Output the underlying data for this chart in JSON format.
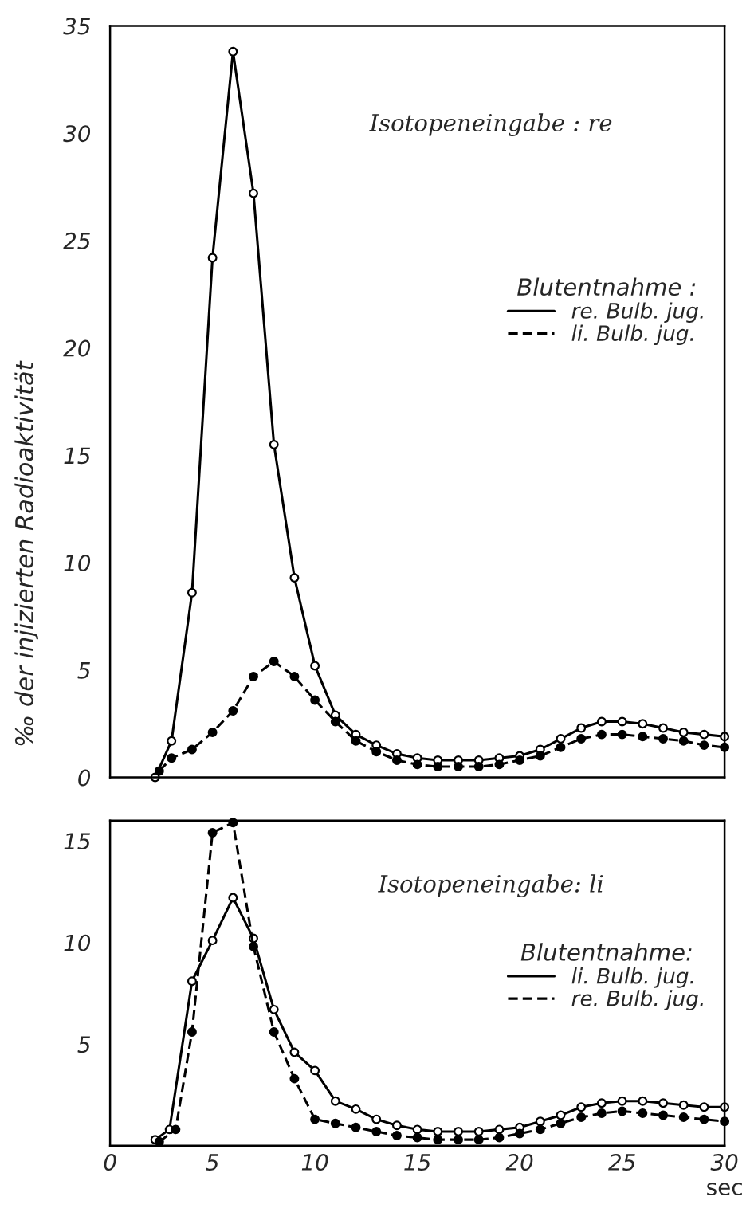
{
  "chart_data": [
    {
      "type": "line",
      "annotations": [
        "Isotopeneingabe : re"
      ],
      "ylabel": "‰ der injizierten Radioaktivität",
      "legend_title": "Blutentnahme :",
      "legend": "right",
      "marker": "circle",
      "grid": false,
      "tick_labels": "y",
      "xlim": [
        0,
        30
      ],
      "xticks": [
        0,
        5,
        10,
        15,
        20,
        25,
        30
      ],
      "ylim": [
        0,
        35
      ],
      "yticks": [
        0,
        5,
        10,
        15,
        20,
        25,
        30,
        35
      ],
      "series": [
        {
          "name": "re. Bulb. jug.",
          "color": "#000000",
          "line_style": "solid",
          "x": [
            2.2,
            3,
            4,
            5,
            6,
            7,
            8,
            9,
            10,
            11,
            12,
            13,
            14,
            15,
            16,
            17,
            18,
            19,
            20,
            21,
            22,
            23,
            24,
            25,
            26,
            27,
            28,
            29,
            30
          ],
          "values": [
            0,
            1.7,
            8.6,
            24.2,
            33.8,
            27.2,
            15.5,
            9.3,
            5.2,
            2.9,
            2.0,
            1.5,
            1.1,
            0.9,
            0.8,
            0.8,
            0.8,
            0.9,
            1.0,
            1.3,
            1.8,
            2.3,
            2.6,
            2.6,
            2.5,
            2.3,
            2.1,
            2.0,
            1.9
          ]
        },
        {
          "name": "li. Bulb. jug.",
          "color": "#000000",
          "line_style": "dashed",
          "x": [
            2.4,
            3,
            4,
            5,
            6,
            7,
            8,
            9,
            10,
            11,
            12,
            13,
            14,
            15,
            16,
            17,
            18,
            19,
            20,
            21,
            22,
            23,
            24,
            25,
            26,
            27,
            28,
            29,
            30
          ],
          "values": [
            0.3,
            0.9,
            1.3,
            2.1,
            3.1,
            4.7,
            5.4,
            4.7,
            3.6,
            2.6,
            1.7,
            1.2,
            0.8,
            0.6,
            0.5,
            0.5,
            0.5,
            0.6,
            0.8,
            1.0,
            1.4,
            1.8,
            2.0,
            2.0,
            1.9,
            1.8,
            1.7,
            1.5,
            1.4
          ]
        }
      ]
    },
    {
      "type": "line",
      "annotations": [
        "Isotopeneingabe: li"
      ],
      "xlabel": "sec",
      "legend_title": "Blutentnahme:",
      "legend": "right",
      "marker": "circle",
      "grid": false,
      "xlim": [
        0,
        30
      ],
      "xticks": [
        0,
        5,
        10,
        15,
        20,
        25,
        30
      ],
      "ylim": [
        0,
        16
      ],
      "yticks": [
        5,
        10,
        15
      ],
      "series": [
        {
          "name": "li. Bulb. jug.",
          "color": "#000000",
          "line_style": "solid",
          "x": [
            2.2,
            2.9,
            4,
            5,
            6,
            7,
            8,
            9,
            10,
            11,
            12,
            13,
            14,
            15,
            16,
            17,
            18,
            19,
            20,
            21,
            22,
            23,
            24,
            25,
            26,
            27,
            28,
            29,
            30
          ],
          "values": [
            0.3,
            0.8,
            8.1,
            10.1,
            12.2,
            10.2,
            6.7,
            4.6,
            3.7,
            2.2,
            1.8,
            1.3,
            1.0,
            0.8,
            0.7,
            0.7,
            0.7,
            0.8,
            0.9,
            1.2,
            1.5,
            1.9,
            2.1,
            2.2,
            2.2,
            2.1,
            2.0,
            1.9,
            1.9
          ]
        },
        {
          "name": "re. Bulb. jug.",
          "color": "#000000",
          "line_style": "dashed",
          "x": [
            2.4,
            3.2,
            4,
            5,
            6,
            7,
            8,
            9,
            10,
            11,
            12,
            13,
            14,
            15,
            16,
            17,
            18,
            19,
            20,
            21,
            22,
            23,
            24,
            25,
            26,
            27,
            28,
            29,
            30
          ],
          "values": [
            0.2,
            0.8,
            5.6,
            15.4,
            15.9,
            9.8,
            5.6,
            3.3,
            1.3,
            1.1,
            0.9,
            0.7,
            0.5,
            0.4,
            0.3,
            0.3,
            0.3,
            0.4,
            0.6,
            0.8,
            1.1,
            1.4,
            1.6,
            1.7,
            1.6,
            1.5,
            1.4,
            1.3,
            1.2
          ]
        }
      ]
    }
  ]
}
